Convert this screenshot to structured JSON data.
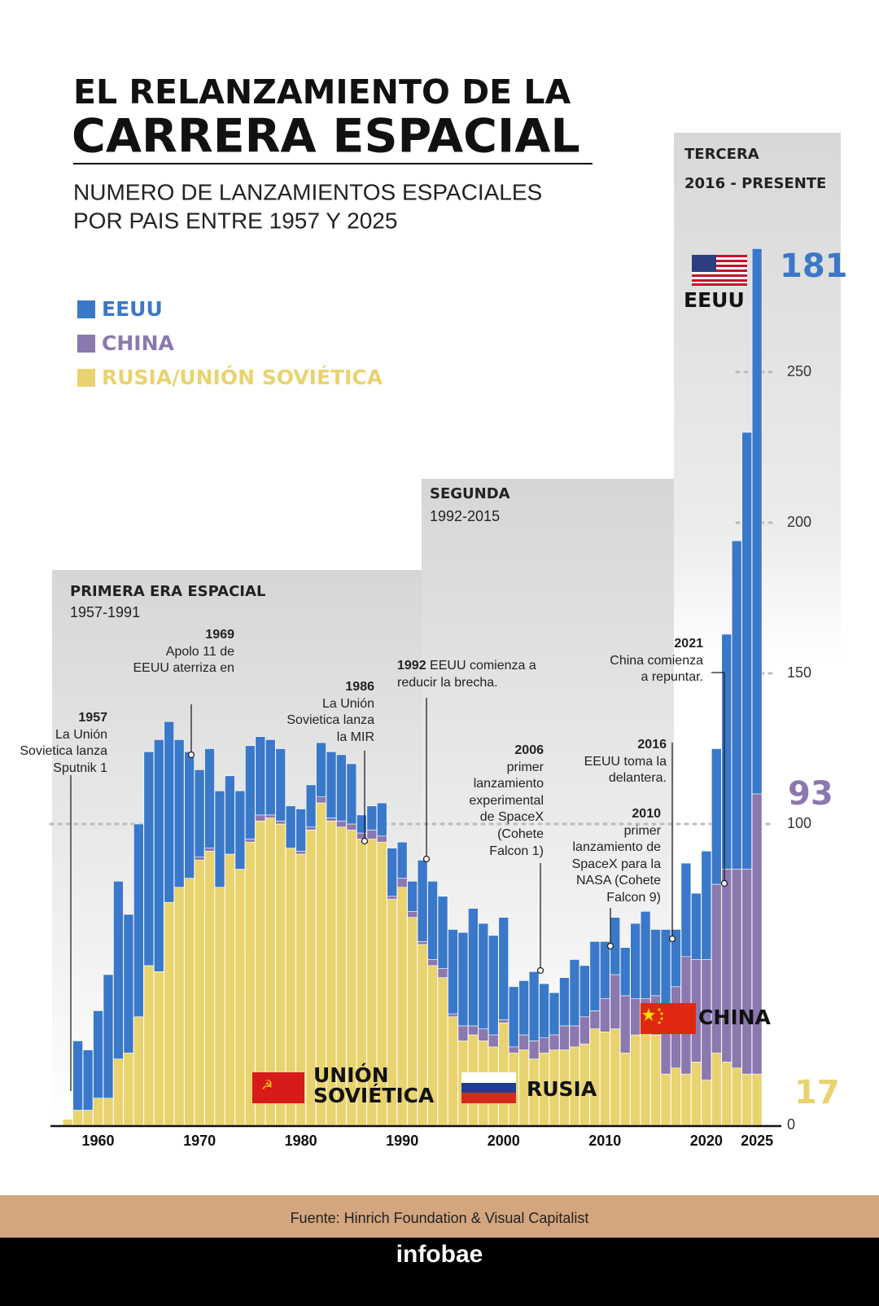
{
  "chart_data": {
    "type": "stacked_bar",
    "title_lines": [
      "EL RELANZAMIENTO DE LA",
      "CARRERA ESPACIAL"
    ],
    "subtitle_lines": [
      "NUMERO DE LANZAMIENTOS ESPACIALES",
      "POR PAIS ENTRE 1957 Y 2025"
    ],
    "x": [
      1957,
      1958,
      1959,
      1960,
      1961,
      1962,
      1963,
      1964,
      1965,
      1966,
      1967,
      1968,
      1969,
      1970,
      1971,
      1972,
      1973,
      1974,
      1975,
      1976,
      1977,
      1978,
      1979,
      1980,
      1981,
      1982,
      1983,
      1984,
      1985,
      1986,
      1987,
      1988,
      1989,
      1990,
      1991,
      1992,
      1993,
      1994,
      1995,
      1996,
      1997,
      1998,
      1999,
      2000,
      2001,
      2002,
      2003,
      2004,
      2005,
      2006,
      2007,
      2008,
      2009,
      2010,
      2011,
      2012,
      2013,
      2014,
      2015,
      2016,
      2017,
      2018,
      2019,
      2020,
      2021,
      2022,
      2023,
      2024,
      2025
    ],
    "xlim": [
      1955.3,
      2027.4
    ],
    "xticks": [
      1960,
      1970,
      1980,
      1990,
      2000,
      2010,
      2020,
      2025
    ],
    "ylim": [
      0,
      290
    ],
    "yticks": [
      0,
      100,
      150,
      200,
      250
    ],
    "grid": true,
    "series": [
      {
        "name": "EEUU",
        "color": "#3a78c9",
        "values": [
          0,
          23,
          20,
          29,
          41,
          59,
          46,
          64,
          71,
          77,
          60,
          49,
          42,
          29,
          33,
          32,
          26,
          26,
          31,
          26,
          25,
          24,
          14,
          14,
          14,
          18,
          22,
          22,
          20,
          6,
          8,
          11,
          16,
          12,
          10,
          27,
          26,
          24,
          28,
          31,
          39,
          35,
          33,
          34,
          20,
          18,
          23,
          18,
          14,
          16,
          22,
          17,
          23,
          19,
          19,
          16,
          25,
          29,
          22,
          25,
          19,
          31,
          22,
          36,
          45,
          78,
          109,
          145,
          181
        ]
      },
      {
        "name": "CHINA",
        "color": "#8b78ae",
        "values": [
          0,
          0,
          0,
          0,
          0,
          0,
          0,
          0,
          0,
          0,
          0,
          0,
          0,
          1,
          1,
          0,
          0,
          0,
          1,
          2,
          1,
          1,
          0,
          1,
          1,
          2,
          1,
          2,
          2,
          2,
          3,
          2,
          1,
          3,
          2,
          1,
          2,
          3,
          1,
          5,
          3,
          4,
          4,
          1,
          2,
          5,
          6,
          5,
          5,
          8,
          7,
          9,
          6,
          11,
          18,
          19,
          12,
          11,
          13,
          23,
          27,
          39,
          34,
          40,
          56,
          64,
          66,
          68,
          93
        ]
      },
      {
        "name": "RUSIA/UNIÓN SOVIÉTICA",
        "color": "#e9d36f",
        "values": [
          2,
          5,
          5,
          9,
          9,
          22,
          24,
          36,
          53,
          51,
          74,
          79,
          82,
          88,
          91,
          79,
          90,
          85,
          94,
          101,
          102,
          100,
          92,
          90,
          98,
          107,
          101,
          99,
          98,
          95,
          95,
          94,
          75,
          79,
          69,
          60,
          53,
          49,
          36,
          28,
          30,
          28,
          26,
          34,
          24,
          25,
          22,
          24,
          25,
          25,
          26,
          27,
          32,
          31,
          32,
          24,
          30,
          31,
          30,
          17,
          19,
          17,
          21,
          15,
          24,
          21,
          19,
          17,
          17
        ]
      }
    ],
    "eras": [
      {
        "name": "PRIMERA ERA ESPACIAL",
        "years": "1957-1991"
      },
      {
        "name": "SEGUNDA",
        "years": "1992-2015"
      },
      {
        "name": "TERCERA",
        "years": "2016 - PRESENTE"
      }
    ],
    "annotations": [
      {
        "year": "1957",
        "lines": [
          "La Unión",
          "Sovietica lanza",
          "Sputnik 1"
        ]
      },
      {
        "year": "1969",
        "lines": [
          "Apolo 11 de",
          "EEUU aterriza en"
        ]
      },
      {
        "year": "1986",
        "lines": [
          "La Unión",
          "Sovietica lanza",
          "la MIR"
        ]
      },
      {
        "year": "1992",
        "lines": [
          "EEUU comienza a",
          "reducir la brecha."
        ]
      },
      {
        "year": "2006",
        "lines": [
          "primer",
          "lanzamiento",
          "experimental",
          "de SpaceX",
          "(Cohete",
          "Falcon 1)"
        ]
      },
      {
        "year": "2010",
        "lines": [
          "primer",
          "lanzamiento de",
          "SpaceX para la",
          "NASA (Cohete",
          "Falcon 9)"
        ]
      },
      {
        "year": "2016",
        "lines": [
          "EEUU toma la",
          "delantera."
        ]
      },
      {
        "year": "2021",
        "lines": [
          "China comienza",
          "a repuntar."
        ]
      }
    ],
    "country_labels": {
      "usa": "EEUU",
      "china": "CHINA",
      "ussr": [
        "UNIÓN",
        "SOVIÉTICA"
      ],
      "russia": "RUSIA"
    },
    "source": "Fuente: Hinrich Foundation & Visual Capitalist",
    "brand": "infobae"
  }
}
